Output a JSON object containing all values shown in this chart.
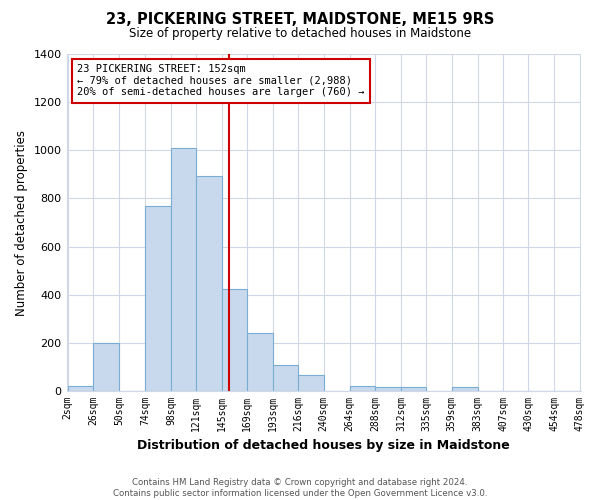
{
  "title": "23, PICKERING STREET, MAIDSTONE, ME15 9RS",
  "subtitle": "Size of property relative to detached houses in Maidstone",
  "xlabel": "Distribution of detached houses by size in Maidstone",
  "ylabel": "Number of detached properties",
  "bin_edges": [
    2,
    26,
    50,
    74,
    98,
    121,
    145,
    169,
    193,
    216,
    240,
    264,
    288,
    312,
    335,
    359,
    383,
    407,
    430,
    454,
    478
  ],
  "bar_heights": [
    20,
    200,
    0,
    770,
    1010,
    895,
    425,
    240,
    110,
    65,
    0,
    20,
    15,
    15,
    0,
    15,
    0,
    0,
    0,
    0
  ],
  "bar_color": "#c9d9ed",
  "bar_edgecolor": "#7aadd4",
  "tick_labels": [
    "2sqm",
    "26sqm",
    "50sqm",
    "74sqm",
    "98sqm",
    "121sqm",
    "145sqm",
    "169sqm",
    "193sqm",
    "216sqm",
    "240sqm",
    "264sqm",
    "288sqm",
    "312sqm",
    "335sqm",
    "359sqm",
    "383sqm",
    "407sqm",
    "430sqm",
    "454sqm",
    "478sqm"
  ],
  "vline_x": 152,
  "vline_color": "#cc0000",
  "ylim": [
    0,
    1400
  ],
  "yticks": [
    0,
    200,
    400,
    600,
    800,
    1000,
    1200,
    1400
  ],
  "annotation_title": "23 PICKERING STREET: 152sqm",
  "annotation_line1": "← 79% of detached houses are smaller (2,988)",
  "annotation_line2": "20% of semi-detached houses are larger (760) →",
  "footer_line1": "Contains HM Land Registry data © Crown copyright and database right 2024.",
  "footer_line2": "Contains public sector information licensed under the Open Government Licence v3.0.",
  "background_color": "#ffffff",
  "grid_color": "#d0d8e8"
}
